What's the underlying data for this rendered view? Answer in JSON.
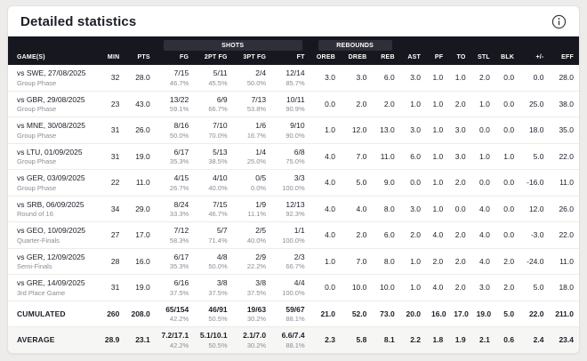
{
  "header": {
    "title": "Detailed statistics",
    "info_icon": "info-icon"
  },
  "table": {
    "group_headers": {
      "shots": "SHOTS",
      "rebounds": "REBOUNDS"
    },
    "columns": [
      "GAME(S)",
      "MIN",
      "PTS",
      "FG",
      "2PT FG",
      "3PT FG",
      "FT",
      "OREB",
      "DREB",
      "REB",
      "AST",
      "PF",
      "TO",
      "STL",
      "BLK",
      "+/-",
      "EFF"
    ],
    "rows": [
      {
        "game": "vs SWE, 27/08/2025",
        "phase": "Group Phase",
        "min": "32",
        "pts": "28.0",
        "shots": [
          [
            "7/15",
            "46.7%"
          ],
          [
            "5/11",
            "45.5%"
          ],
          [
            "2/4",
            "50.0%"
          ],
          [
            "12/14",
            "85.7%"
          ]
        ],
        "stats": [
          "3.0",
          "3.0",
          "6.0",
          "3.0",
          "1.0",
          "1.0",
          "2.0",
          "0.0",
          "0.0",
          "28.0"
        ]
      },
      {
        "game": "vs GBR, 29/08/2025",
        "phase": "Group Phase",
        "min": "23",
        "pts": "43.0",
        "shots": [
          [
            "13/22",
            "59.1%"
          ],
          [
            "6/9",
            "66.7%"
          ],
          [
            "7/13",
            "53.8%"
          ],
          [
            "10/11",
            "90.9%"
          ]
        ],
        "stats": [
          "0.0",
          "2.0",
          "2.0",
          "1.0",
          "1.0",
          "2.0",
          "1.0",
          "0.0",
          "25.0",
          "38.0"
        ]
      },
      {
        "game": "vs MNE, 30/08/2025",
        "phase": "Group Phase",
        "min": "31",
        "pts": "26.0",
        "shots": [
          [
            "8/16",
            "50.0%"
          ],
          [
            "7/10",
            "70.0%"
          ],
          [
            "1/6",
            "16.7%"
          ],
          [
            "9/10",
            "90.0%"
          ]
        ],
        "stats": [
          "1.0",
          "12.0",
          "13.0",
          "3.0",
          "1.0",
          "3.0",
          "0.0",
          "0.0",
          "18.0",
          "35.0"
        ]
      },
      {
        "game": "vs LTU, 01/09/2025",
        "phase": "Group Phase",
        "min": "31",
        "pts": "19.0",
        "shots": [
          [
            "6/17",
            "35.3%"
          ],
          [
            "5/13",
            "38.5%"
          ],
          [
            "1/4",
            "25.0%"
          ],
          [
            "6/8",
            "75.0%"
          ]
        ],
        "stats": [
          "4.0",
          "7.0",
          "11.0",
          "6.0",
          "1.0",
          "3.0",
          "1.0",
          "1.0",
          "5.0",
          "22.0"
        ]
      },
      {
        "game": "vs GER, 03/09/2025",
        "phase": "Group Phase",
        "min": "22",
        "pts": "11.0",
        "shots": [
          [
            "4/15",
            "26.7%"
          ],
          [
            "4/10",
            "40.0%"
          ],
          [
            "0/5",
            "0.0%"
          ],
          [
            "3/3",
            "100.0%"
          ]
        ],
        "stats": [
          "4.0",
          "5.0",
          "9.0",
          "0.0",
          "1.0",
          "2.0",
          "0.0",
          "0.0",
          "-16.0",
          "11.0"
        ]
      },
      {
        "game": "vs SRB, 06/09/2025",
        "phase": "Round of 16",
        "min": "34",
        "pts": "29.0",
        "shots": [
          [
            "8/24",
            "33.3%"
          ],
          [
            "7/15",
            "46.7%"
          ],
          [
            "1/9",
            "11.1%"
          ],
          [
            "12/13",
            "92.3%"
          ]
        ],
        "stats": [
          "4.0",
          "4.0",
          "8.0",
          "3.0",
          "1.0",
          "0.0",
          "4.0",
          "0.0",
          "12.0",
          "26.0"
        ]
      },
      {
        "game": "vs GEO, 10/09/2025",
        "phase": "Quarter-Finals",
        "min": "27",
        "pts": "17.0",
        "shots": [
          [
            "7/12",
            "58.3%"
          ],
          [
            "5/7",
            "71.4%"
          ],
          [
            "2/5",
            "40.0%"
          ],
          [
            "1/1",
            "100.0%"
          ]
        ],
        "stats": [
          "4.0",
          "2.0",
          "6.0",
          "2.0",
          "4.0",
          "2.0",
          "4.0",
          "0.0",
          "-3.0",
          "22.0"
        ]
      },
      {
        "game": "vs GER, 12/09/2025",
        "phase": "Semi-Finals",
        "min": "28",
        "pts": "16.0",
        "shots": [
          [
            "6/17",
            "35.3%"
          ],
          [
            "4/8",
            "50.0%"
          ],
          [
            "2/9",
            "22.2%"
          ],
          [
            "2/3",
            "66.7%"
          ]
        ],
        "stats": [
          "1.0",
          "7.0",
          "8.0",
          "1.0",
          "2.0",
          "2.0",
          "4.0",
          "2.0",
          "-24.0",
          "11.0"
        ]
      },
      {
        "game": "vs GRE, 14/09/2025",
        "phase": "3rd Place Game",
        "min": "31",
        "pts": "19.0",
        "shots": [
          [
            "6/16",
            "37.5%"
          ],
          [
            "3/8",
            "37.5%"
          ],
          [
            "3/8",
            "37.5%"
          ],
          [
            "4/4",
            "100.0%"
          ]
        ],
        "stats": [
          "0.0",
          "10.0",
          "10.0",
          "1.0",
          "4.0",
          "2.0",
          "3.0",
          "2.0",
          "5.0",
          "18.0"
        ]
      }
    ],
    "cumulated": {
      "label": "CUMULATED",
      "min": "260",
      "pts": "208.0",
      "shots": [
        [
          "65/154",
          "42.2%"
        ],
        [
          "46/91",
          "50.5%"
        ],
        [
          "19/63",
          "30.2%"
        ],
        [
          "59/67",
          "88.1%"
        ]
      ],
      "stats": [
        "21.0",
        "52.0",
        "73.0",
        "20.0",
        "16.0",
        "17.0",
        "19.0",
        "5.0",
        "22.0",
        "211.0"
      ]
    },
    "average": {
      "label": "AVERAGE",
      "min": "28.9",
      "pts": "23.1",
      "shots": [
        [
          "7.2/17.1",
          "42.2%"
        ],
        [
          "5.1/10.1",
          "50.5%"
        ],
        [
          "2.1/7.0",
          "30.2%"
        ],
        [
          "6.6/7.4",
          "88.1%"
        ]
      ],
      "stats": [
        "2.3",
        "5.8",
        "8.1",
        "2.2",
        "1.8",
        "1.9",
        "2.1",
        "0.6",
        "2.4",
        "23.4"
      ]
    }
  },
  "colors": {
    "header_bg": "#17171f",
    "chip_bg": "#2f2f3a",
    "text_dark": "#1d1d28",
    "text_sub": "#8c8c95",
    "page_bg": "#edecea",
    "average_bg": "#f6f6f4"
  }
}
